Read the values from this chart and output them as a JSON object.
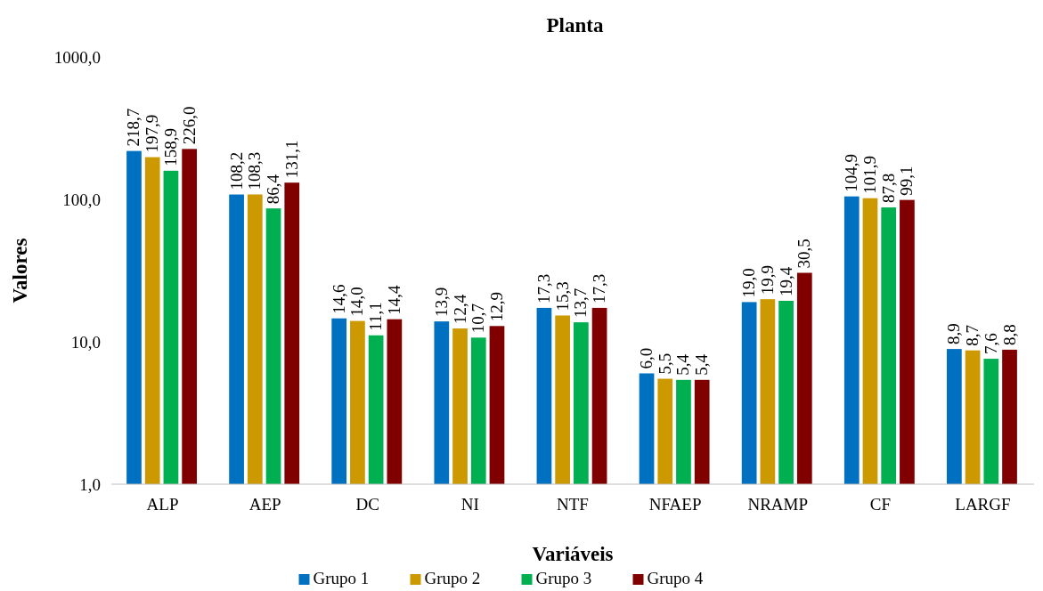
{
  "chart_data": {
    "type": "bar",
    "title": "Planta",
    "xlabel": "Variáveis",
    "ylabel": "Valores",
    "log": true,
    "legend": "bottom",
    "grid": false,
    "categories": [
      "ALP",
      "AEP",
      "DC",
      "NI",
      "NTF",
      "NFAEP",
      "NRAMP",
      "CF",
      "LARGF"
    ],
    "ylim": [
      1,
      1000
    ],
    "yticks": [
      {
        "value": 1,
        "label": "1,0"
      },
      {
        "value": 10,
        "label": "10,0"
      },
      {
        "value": 100,
        "label": "100,0"
      },
      {
        "value": 1000,
        "label": "1000,0"
      }
    ],
    "series": [
      {
        "name": "Grupo 1",
        "color": "#0070c0",
        "values": [
          218.7,
          108.2,
          14.6,
          13.9,
          17.3,
          6.0,
          19.0,
          104.9,
          8.9
        ],
        "value_labels": [
          "218,7",
          "108,2",
          "14,6",
          "13,9",
          "17,3",
          "6,0",
          "19,0",
          "104,9",
          "8,9"
        ]
      },
      {
        "name": "Grupo 2",
        "color": "#cc9900",
        "values": [
          197.9,
          108.3,
          14.0,
          12.4,
          15.3,
          5.5,
          19.9,
          101.9,
          8.7
        ],
        "value_labels": [
          "197,9",
          "108,3",
          "14,0",
          "12,4",
          "15,3",
          "5,5",
          "19,9",
          "101,9",
          "8,7"
        ]
      },
      {
        "name": "Grupo 3",
        "color": "#00b050",
        "values": [
          158.9,
          86.4,
          11.1,
          10.7,
          13.7,
          5.4,
          19.4,
          87.8,
          7.6
        ],
        "value_labels": [
          "158,9",
          "86,4",
          "11,1",
          "10,7",
          "13,7",
          "5,4",
          "19,4",
          "87,8",
          "7,6"
        ]
      },
      {
        "name": "Grupo 4",
        "color": "#800000",
        "values": [
          226.0,
          131.1,
          14.4,
          12.9,
          17.3,
          5.4,
          30.5,
          99.1,
          8.8
        ],
        "value_labels": [
          "226,0",
          "131,1",
          "14,4",
          "12,9",
          "17,3",
          "5,4",
          "30,5",
          "99,1",
          "8,8"
        ]
      }
    ]
  }
}
